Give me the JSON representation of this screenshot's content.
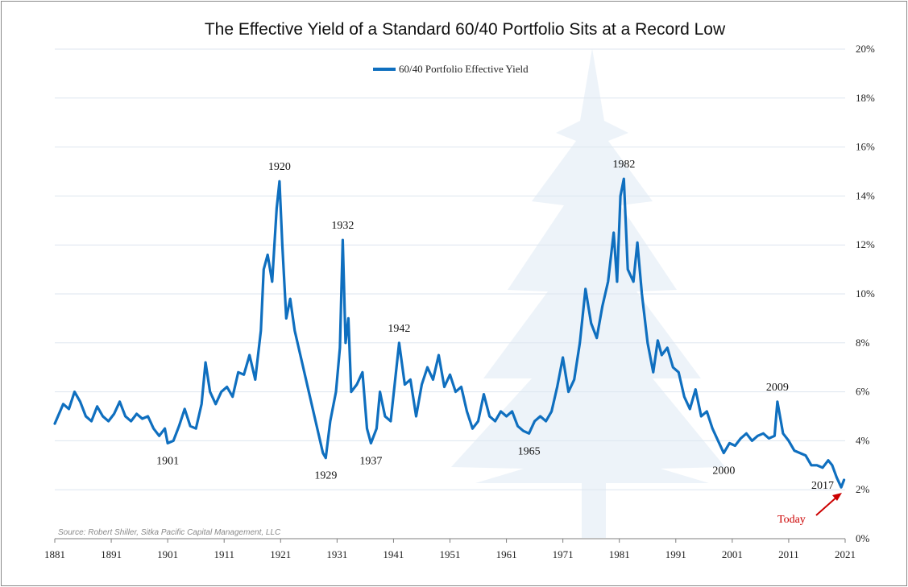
{
  "chart_data": {
    "type": "line",
    "title": "The Effective Yield of a Standard 60/40 Portfolio Sits at a Record Low",
    "xlabel": "",
    "ylabel": "",
    "xlim": [
      1881,
      2021
    ],
    "ylim": [
      0,
      20
    ],
    "y_ticks": [
      "0%",
      "2%",
      "4%",
      "6%",
      "8%",
      "10%",
      "12%",
      "14%",
      "16%",
      "18%",
      "20%"
    ],
    "x_ticks": [
      "1881",
      "1891",
      "1901",
      "1911",
      "1921",
      "1931",
      "1941",
      "1951",
      "1961",
      "1971",
      "1981",
      "1991",
      "2001",
      "2011",
      "2021"
    ],
    "grid": "horizontal",
    "legend_position": "top-center",
    "series": [
      {
        "name": "60/40 Portfolio Effective Yield",
        "color": "#0f6fbf",
        "points": [
          [
            1881.0,
            4.7
          ],
          [
            1882.5,
            5.5
          ],
          [
            1883.5,
            5.3
          ],
          [
            1884.5,
            6.0
          ],
          [
            1885.5,
            5.6
          ],
          [
            1886.5,
            5.0
          ],
          [
            1887.5,
            4.8
          ],
          [
            1888.5,
            5.4
          ],
          [
            1889.5,
            5.0
          ],
          [
            1890.5,
            4.8
          ],
          [
            1891.5,
            5.1
          ],
          [
            1892.5,
            5.6
          ],
          [
            1893.5,
            5.0
          ],
          [
            1894.5,
            4.8
          ],
          [
            1895.5,
            5.1
          ],
          [
            1896.5,
            4.9
          ],
          [
            1897.5,
            5.0
          ],
          [
            1898.5,
            4.5
          ],
          [
            1899.5,
            4.2
          ],
          [
            1900.5,
            4.5
          ],
          [
            1901.0,
            3.9
          ],
          [
            1902.0,
            4.0
          ],
          [
            1903.0,
            4.6
          ],
          [
            1904.0,
            5.3
          ],
          [
            1905.0,
            4.6
          ],
          [
            1906.0,
            4.5
          ],
          [
            1907.0,
            5.5
          ],
          [
            1907.7,
            7.2
          ],
          [
            1908.5,
            6.0
          ],
          [
            1909.5,
            5.5
          ],
          [
            1910.5,
            6.0
          ],
          [
            1911.5,
            6.2
          ],
          [
            1912.5,
            5.8
          ],
          [
            1913.5,
            6.8
          ],
          [
            1914.5,
            6.7
          ],
          [
            1915.5,
            7.5
          ],
          [
            1916.5,
            6.5
          ],
          [
            1917.5,
            8.5
          ],
          [
            1918.0,
            11.0
          ],
          [
            1918.7,
            11.6
          ],
          [
            1919.5,
            10.5
          ],
          [
            1920.3,
            13.5
          ],
          [
            1920.8,
            14.6
          ],
          [
            1921.3,
            12.0
          ],
          [
            1922.0,
            9.0
          ],
          [
            1922.7,
            9.8
          ],
          [
            1923.5,
            8.5
          ],
          [
            1924.5,
            7.5
          ],
          [
            1925.5,
            6.5
          ],
          [
            1926.5,
            5.5
          ],
          [
            1927.5,
            4.5
          ],
          [
            1928.5,
            3.5
          ],
          [
            1929.0,
            3.3
          ],
          [
            1929.8,
            4.8
          ],
          [
            1930.8,
            6.0
          ],
          [
            1931.5,
            7.8
          ],
          [
            1932.0,
            12.2
          ],
          [
            1932.5,
            8.0
          ],
          [
            1933.0,
            9.0
          ],
          [
            1933.5,
            6.0
          ],
          [
            1934.5,
            6.3
          ],
          [
            1935.5,
            6.8
          ],
          [
            1936.3,
            4.5
          ],
          [
            1937.0,
            3.9
          ],
          [
            1938.0,
            4.5
          ],
          [
            1938.6,
            6.0
          ],
          [
            1939.5,
            5.0
          ],
          [
            1940.5,
            4.8
          ],
          [
            1941.3,
            6.5
          ],
          [
            1942.0,
            8.0
          ],
          [
            1943.0,
            6.3
          ],
          [
            1944.0,
            6.5
          ],
          [
            1945.0,
            5.0
          ],
          [
            1946.0,
            6.3
          ],
          [
            1947.0,
            7.0
          ],
          [
            1948.0,
            6.5
          ],
          [
            1949.0,
            7.5
          ],
          [
            1950.0,
            6.2
          ],
          [
            1951.0,
            6.7
          ],
          [
            1952.0,
            6.0
          ],
          [
            1953.0,
            6.2
          ],
          [
            1954.0,
            5.2
          ],
          [
            1955.0,
            4.5
          ],
          [
            1956.0,
            4.8
          ],
          [
            1957.0,
            5.9
          ],
          [
            1958.0,
            5.0
          ],
          [
            1959.0,
            4.8
          ],
          [
            1960.0,
            5.2
          ],
          [
            1961.0,
            5.0
          ],
          [
            1962.0,
            5.2
          ],
          [
            1963.0,
            4.6
          ],
          [
            1964.0,
            4.4
          ],
          [
            1965.0,
            4.3
          ],
          [
            1966.0,
            4.8
          ],
          [
            1967.0,
            5.0
          ],
          [
            1968.0,
            4.8
          ],
          [
            1969.0,
            5.2
          ],
          [
            1970.0,
            6.2
          ],
          [
            1971.0,
            7.4
          ],
          [
            1972.0,
            6.0
          ],
          [
            1973.0,
            6.5
          ],
          [
            1974.0,
            8.0
          ],
          [
            1975.0,
            10.2
          ],
          [
            1976.0,
            8.8
          ],
          [
            1977.0,
            8.2
          ],
          [
            1978.0,
            9.5
          ],
          [
            1979.0,
            10.5
          ],
          [
            1980.0,
            12.5
          ],
          [
            1980.6,
            10.5
          ],
          [
            1981.2,
            14.0
          ],
          [
            1981.8,
            14.7
          ],
          [
            1982.5,
            11.0
          ],
          [
            1983.5,
            10.5
          ],
          [
            1984.2,
            12.1
          ],
          [
            1985.0,
            10.0
          ],
          [
            1986.0,
            8.0
          ],
          [
            1987.0,
            6.8
          ],
          [
            1987.8,
            8.1
          ],
          [
            1988.5,
            7.5
          ],
          [
            1989.5,
            7.8
          ],
          [
            1990.5,
            7.0
          ],
          [
            1991.5,
            6.8
          ],
          [
            1992.5,
            5.8
          ],
          [
            1993.5,
            5.3
          ],
          [
            1994.5,
            6.1
          ],
          [
            1995.5,
            5.0
          ],
          [
            1996.5,
            5.2
          ],
          [
            1997.5,
            4.5
          ],
          [
            1998.5,
            4.0
          ],
          [
            1999.5,
            3.5
          ],
          [
            2000.5,
            3.9
          ],
          [
            2001.5,
            3.8
          ],
          [
            2002.5,
            4.1
          ],
          [
            2003.5,
            4.3
          ],
          [
            2004.5,
            4.0
          ],
          [
            2005.5,
            4.2
          ],
          [
            2006.5,
            4.3
          ],
          [
            2007.5,
            4.1
          ],
          [
            2008.5,
            4.2
          ],
          [
            2009.0,
            5.6
          ],
          [
            2010.0,
            4.3
          ],
          [
            2011.0,
            4.0
          ],
          [
            2012.0,
            3.6
          ],
          [
            2013.0,
            3.5
          ],
          [
            2014.0,
            3.4
          ],
          [
            2015.0,
            3.0
          ],
          [
            2016.0,
            3.0
          ],
          [
            2017.0,
            2.9
          ],
          [
            2018.0,
            3.2
          ],
          [
            2018.7,
            3.0
          ],
          [
            2019.5,
            2.5
          ],
          [
            2020.3,
            2.1
          ],
          [
            2020.8,
            2.4
          ]
        ]
      }
    ],
    "annotations": [
      {
        "text": "1901",
        "x": 1901,
        "y": 3.9,
        "pos": "below"
      },
      {
        "text": "1920",
        "x": 1920.8,
        "y": 14.6,
        "pos": "above"
      },
      {
        "text": "1929",
        "x": 1929,
        "y": 3.3,
        "pos": "below"
      },
      {
        "text": "1932",
        "x": 1932,
        "y": 12.2,
        "pos": "above"
      },
      {
        "text": "1937",
        "x": 1937,
        "y": 3.9,
        "pos": "below"
      },
      {
        "text": "1942",
        "x": 1942,
        "y": 8.0,
        "pos": "above"
      },
      {
        "text": "1965",
        "x": 1965,
        "y": 4.3,
        "pos": "below"
      },
      {
        "text": "1982",
        "x": 1981.8,
        "y": 14.7,
        "pos": "above"
      },
      {
        "text": "2000",
        "x": 1999.5,
        "y": 3.5,
        "pos": "below"
      },
      {
        "text": "2009",
        "x": 2009,
        "y": 5.6,
        "pos": "above"
      },
      {
        "text": "2017",
        "x": 2017,
        "y": 2.9,
        "pos": "below"
      }
    ],
    "callout": {
      "text": "Today",
      "color": "#cc0000",
      "x": 2020.3,
      "y": 2.1
    },
    "source": "Source: Robert Shiller, Sitka Pacific Capital Management, LLC"
  }
}
